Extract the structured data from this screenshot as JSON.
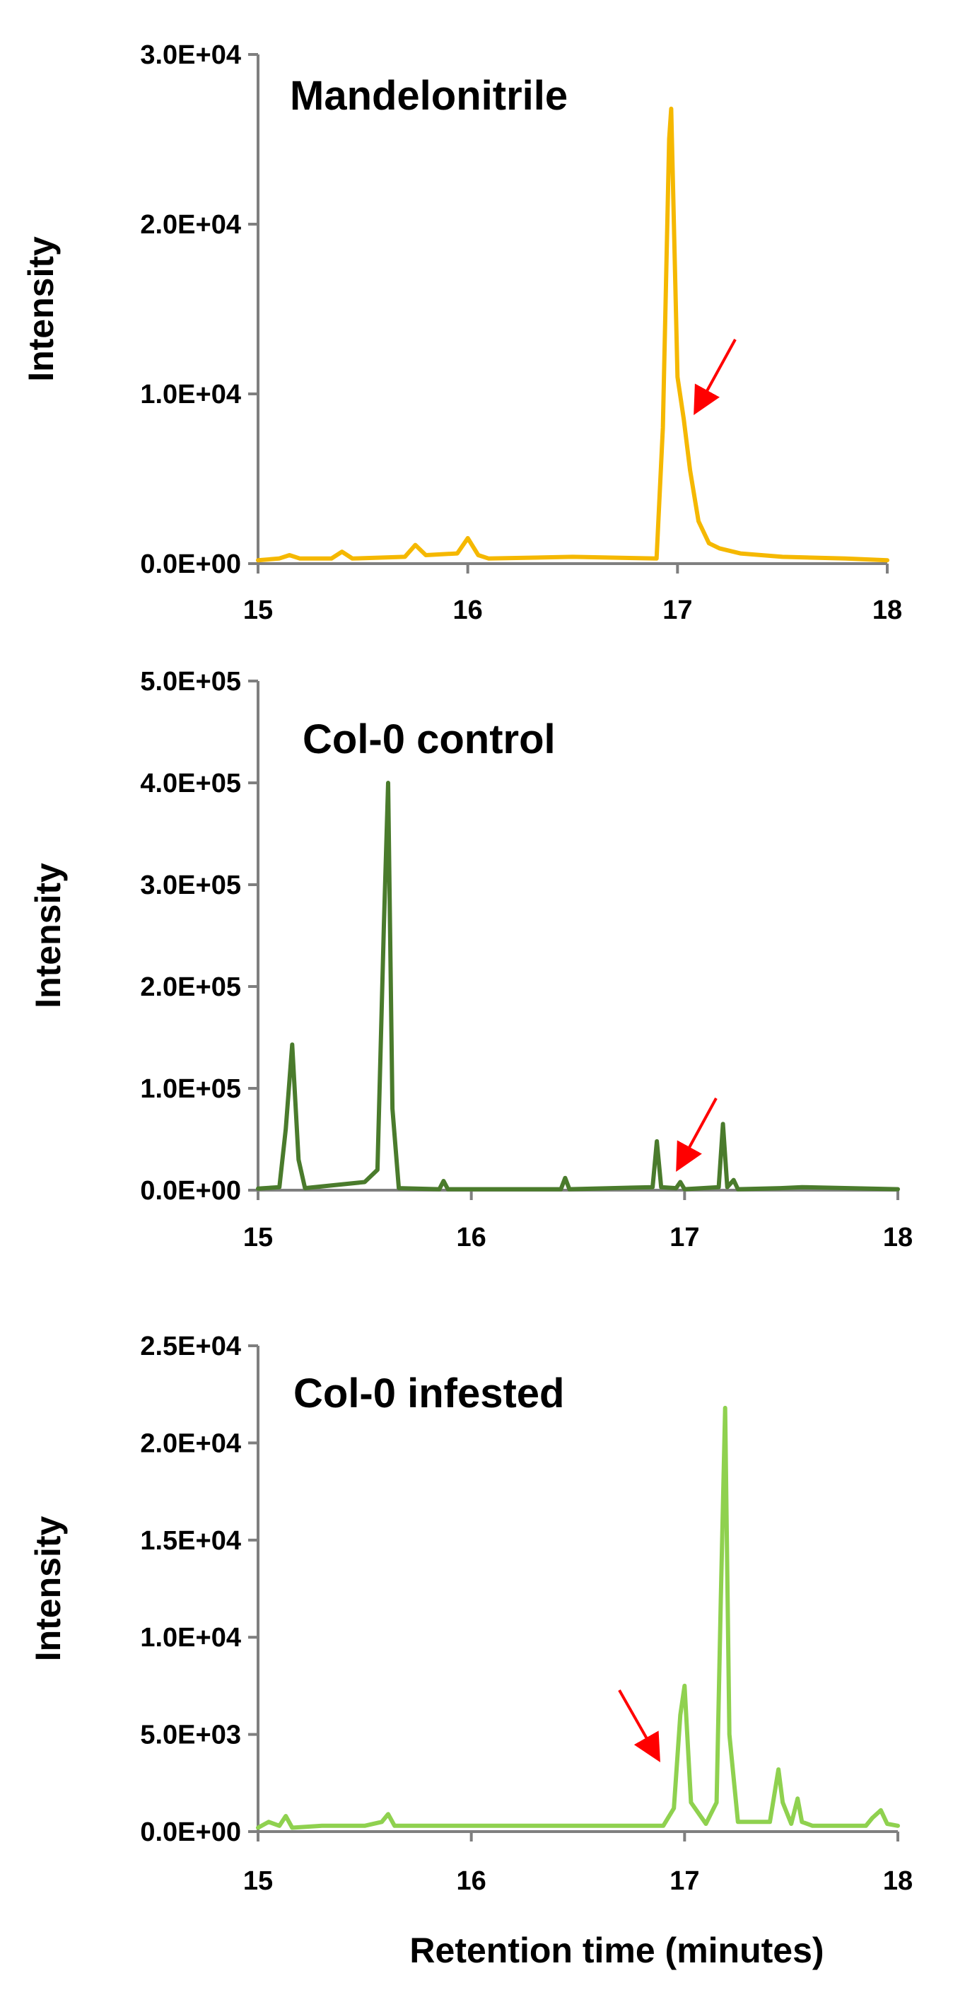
{
  "chart_data": [
    {
      "type": "line",
      "title": "Mandelonitrile",
      "ylabel": "Intensity",
      "xlabel": "",
      "xlim": [
        15,
        18
      ],
      "ylim": [
        0,
        30000
      ],
      "x_ticks": [
        "15",
        "16",
        "17",
        "18"
      ],
      "y_ticks": [
        "0.0E+00",
        "1.0E+04",
        "2.0E+04",
        "3.0E+04"
      ],
      "color": "#f5b800",
      "grid": false,
      "series": [
        {
          "x": [
            15.0,
            15.1,
            15.15,
            15.2,
            15.35,
            15.4,
            15.45,
            15.7,
            15.75,
            15.8,
            15.95,
            16.0,
            16.05,
            16.1,
            16.5,
            16.9,
            16.93,
            16.96,
            16.97,
            17.0,
            17.03,
            17.06,
            17.1,
            17.15,
            17.2,
            17.3,
            17.5,
            17.8,
            18.0
          ],
          "y": [
            200,
            300,
            500,
            300,
            300,
            700,
            300,
            400,
            1100,
            500,
            600,
            1500,
            500,
            300,
            400,
            300,
            8000,
            25000,
            26800,
            11000,
            8500,
            5500,
            2500,
            1200,
            900,
            600,
            400,
            300,
            200
          ]
        }
      ],
      "annotations": [
        {
          "type": "arrow",
          "color": "#ff0000",
          "points_to": {
            "x": 17.06,
            "y": 9000
          }
        }
      ]
    },
    {
      "type": "line",
      "title": "Col-0 control",
      "ylabel": "Intensity",
      "xlabel": "",
      "xlim": [
        15,
        18
      ],
      "ylim": [
        0,
        500000
      ],
      "x_ticks": [
        "15",
        "16",
        "17",
        "18"
      ],
      "y_ticks": [
        "0.0E+00",
        "1.0E+05",
        "2.0E+05",
        "3.0E+05",
        "4.0E+05",
        "5.0E+05"
      ],
      "color": "#4a7b2c",
      "grid": false,
      "series": [
        {
          "x": [
            15.0,
            15.1,
            15.13,
            15.16,
            15.19,
            15.22,
            15.5,
            15.56,
            15.59,
            15.61,
            15.63,
            15.66,
            15.85,
            15.87,
            15.89,
            16.42,
            16.44,
            16.46,
            16.85,
            16.87,
            16.89,
            16.96,
            16.98,
            17.0,
            17.16,
            17.18,
            17.2,
            17.23,
            17.25,
            17.45,
            17.55,
            18.0
          ],
          "y": [
            1500,
            3000,
            60000,
            143000,
            30000,
            2000,
            8000,
            20000,
            260000,
            400000,
            80000,
            2000,
            1000,
            9000,
            1000,
            1000,
            12000,
            1000,
            3000,
            48000,
            3000,
            2000,
            8000,
            1000,
            3000,
            65000,
            3000,
            10000,
            1000,
            2000,
            3000,
            1000
          ]
        }
      ],
      "annotations": [
        {
          "type": "arrow",
          "color": "#ff0000",
          "points_to": {
            "x": 16.96,
            "y": 20000
          }
        }
      ]
    },
    {
      "type": "line",
      "title": "Col-0 infested",
      "ylabel": "Intensity",
      "xlabel": "Retention time (minutes)",
      "xlim": [
        15,
        18
      ],
      "ylim": [
        0,
        25000
      ],
      "x_ticks": [
        "15",
        "16",
        "17",
        "18"
      ],
      "y_ticks": [
        "0.0E+00",
        "5.0E+03",
        "1.0E+04",
        "1.5E+04",
        "2.0E+04",
        "2.5E+04"
      ],
      "color": "#8fd14f",
      "grid": false,
      "series": [
        {
          "x": [
            15.0,
            15.05,
            15.1,
            15.13,
            15.16,
            15.3,
            15.5,
            15.58,
            15.61,
            15.64,
            16.2,
            16.9,
            16.95,
            16.98,
            17.0,
            17.03,
            17.1,
            17.15,
            17.17,
            17.19,
            17.21,
            17.25,
            17.4,
            17.44,
            17.46,
            17.5,
            17.53,
            17.55,
            17.6,
            17.85,
            17.88,
            17.92,
            17.95,
            18.0
          ],
          "y": [
            200,
            500,
            300,
            800,
            200,
            300,
            300,
            500,
            900,
            300,
            300,
            300,
            1200,
            6000,
            7500,
            1500,
            400,
            1500,
            12000,
            21800,
            5000,
            500,
            500,
            3200,
            1500,
            400,
            1700,
            500,
            300,
            300,
            700,
            1100,
            400,
            300
          ]
        }
      ],
      "annotations": [
        {
          "type": "arrow",
          "color": "#ff0000",
          "points_to": {
            "x": 16.9,
            "y": 3000
          }
        }
      ]
    }
  ]
}
